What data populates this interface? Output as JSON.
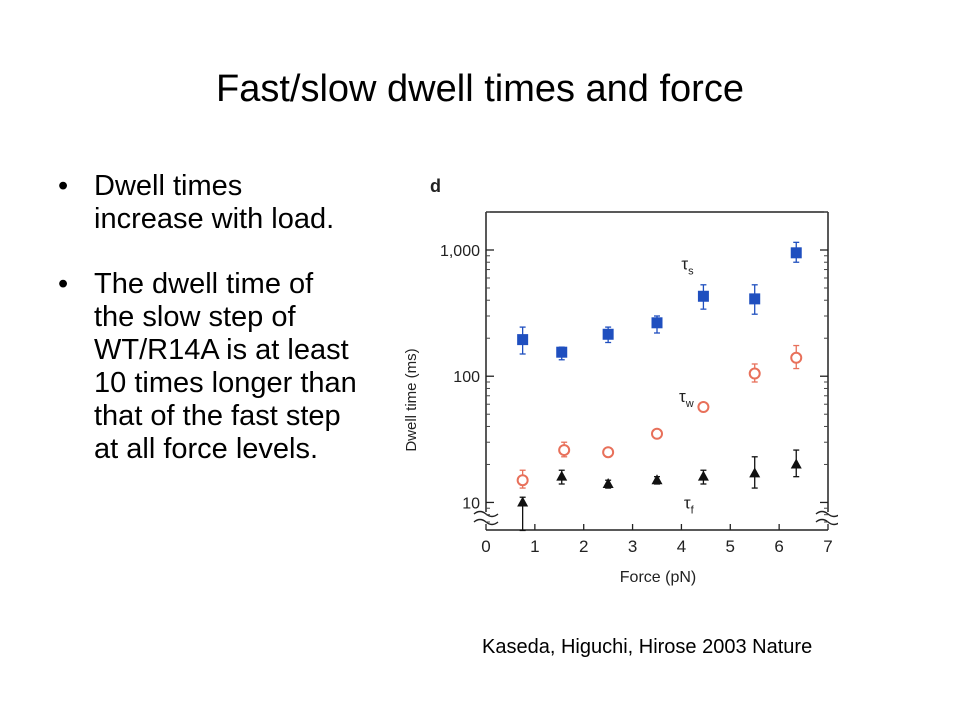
{
  "slide": {
    "title": "Fast/slow dwell times and force",
    "bullets": [
      "Dwell times increase with load.",
      "The dwell time of the slow step of WT/R14A is at least 10 times longer than that of the fast step at all force levels."
    ],
    "bullet_glyph": "•",
    "caption": "Kaseda, Higuchi, Hirose 2003 Nature"
  },
  "chart_data": {
    "type": "scatter",
    "panel_label": "d",
    "xlabel": "Force (pN)",
    "ylabel": "Dwell time (ms)",
    "xlim": [
      0,
      7
    ],
    "ylim": [
      7,
      2000
    ],
    "yscale": "log",
    "x_ticks": [
      "0",
      "1",
      "2",
      "3",
      "4",
      "5",
      "6",
      "7"
    ],
    "y_ticks": [
      {
        "value": 10,
        "label": "10"
      },
      {
        "value": 100,
        "label": "100"
      },
      {
        "value": 1000,
        "label": "1,000"
      }
    ],
    "grid": false,
    "series": [
      {
        "name": "τs",
        "label_main": "τ",
        "label_sub": "s",
        "marker": "filled-square",
        "color": "#1f4fbf",
        "x": [
          0.75,
          1.55,
          2.5,
          3.5,
          4.45,
          5.5,
          6.35
        ],
        "y": [
          195,
          155,
          215,
          265,
          430,
          410,
          950
        ],
        "err_low": [
          150,
          135,
          185,
          220,
          340,
          310,
          800
        ],
        "err_high": [
          245,
          170,
          245,
          300,
          530,
          530,
          1150
        ]
      },
      {
        "name": "τw",
        "label_main": "τ",
        "label_sub": "w",
        "marker": "open-circle",
        "color": "#e8705a",
        "x": [
          0.75,
          1.6,
          2.5,
          3.5,
          4.45,
          5.5,
          6.35
        ],
        "y": [
          15,
          26,
          25,
          35,
          57,
          105,
          140
        ],
        "err_low": [
          13,
          23,
          23,
          33,
          55,
          90,
          115
        ],
        "err_high": [
          18,
          30,
          27,
          37,
          59,
          125,
          175
        ]
      },
      {
        "name": "τf",
        "label_main": "τ",
        "label_sub": "f",
        "marker": "filled-triangle",
        "color": "#111111",
        "x": [
          0.75,
          1.55,
          2.5,
          3.5,
          4.45,
          5.5,
          6.35
        ],
        "y": [
          10,
          16,
          14,
          15,
          16,
          17,
          20
        ],
        "err_low": [
          6,
          14,
          13,
          14,
          14,
          13,
          16
        ],
        "err_high": [
          11,
          18,
          15,
          16,
          18,
          23,
          26
        ]
      }
    ]
  }
}
